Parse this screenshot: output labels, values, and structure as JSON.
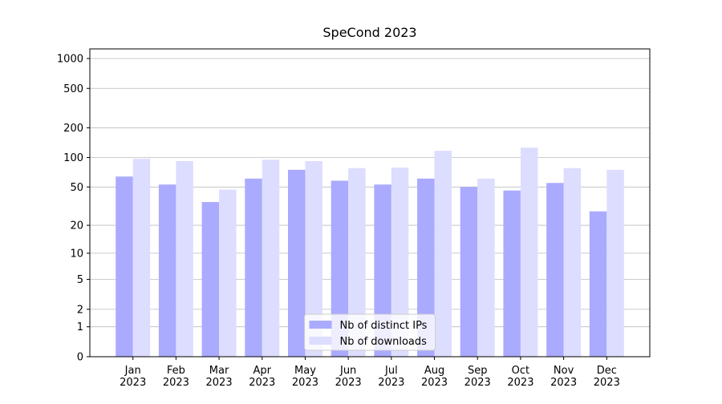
{
  "chart_data": {
    "type": "bar",
    "title": "SpeCond 2023",
    "categories": [
      "Jan\n2023",
      "Feb\n2023",
      "Mar\n2023",
      "Apr\n2023",
      "May\n2023",
      "Jun\n2023",
      "Jul\n2023",
      "Aug\n2023",
      "Sep\n2023",
      "Oct\n2023",
      "Nov\n2023",
      "Dec\n2023"
    ],
    "series": [
      {
        "name": "Nb of distinct IPs",
        "color": "#aaaaff",
        "values": [
          64,
          53,
          35,
          61,
          75,
          58,
          53,
          61,
          50,
          46,
          55,
          28
        ]
      },
      {
        "name": "Nb of downloads",
        "color": "#ddddff",
        "values": [
          97,
          92,
          47,
          95,
          92,
          78,
          79,
          117,
          61,
          126,
          78,
          75
        ]
      }
    ],
    "yscale": "log1p",
    "ylim": [
      0,
      1250
    ],
    "yticks": [
      0,
      1,
      2,
      5,
      10,
      20,
      50,
      100,
      200,
      500,
      1000
    ],
    "grid": true,
    "legend": "lower center"
  }
}
